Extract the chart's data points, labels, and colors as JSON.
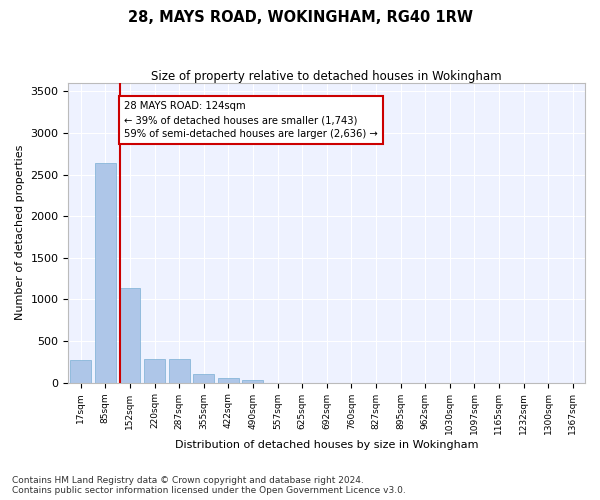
{
  "title": "28, MAYS ROAD, WOKINGHAM, RG40 1RW",
  "subtitle": "Size of property relative to detached houses in Wokingham",
  "xlabel": "Distribution of detached houses by size in Wokingham",
  "ylabel": "Number of detached properties",
  "categories": [
    "17sqm",
    "85sqm",
    "152sqm",
    "220sqm",
    "287sqm",
    "355sqm",
    "422sqm",
    "490sqm",
    "557sqm",
    "625sqm",
    "692sqm",
    "760sqm",
    "827sqm",
    "895sqm",
    "962sqm",
    "1030sqm",
    "1097sqm",
    "1165sqm",
    "1232sqm",
    "1300sqm",
    "1367sqm"
  ],
  "bar_values": [
    270,
    2640,
    1140,
    285,
    285,
    100,
    60,
    35,
    0,
    0,
    0,
    0,
    0,
    0,
    0,
    0,
    0,
    0,
    0,
    0,
    0
  ],
  "bar_color": "#aec6e8",
  "bar_edge_color": "#7bafd4",
  "vline_color": "#cc0000",
  "annotation_text": "28 MAYS ROAD: 124sqm\n← 39% of detached houses are smaller (1,743)\n59% of semi-detached houses are larger (2,636) →",
  "annotation_box_color": "#ffffff",
  "annotation_box_edge": "#cc0000",
  "ylim": [
    0,
    3600
  ],
  "yticks": [
    0,
    500,
    1000,
    1500,
    2000,
    2500,
    3000,
    3500
  ],
  "background_color": "#eef2ff",
  "grid_color": "#ffffff",
  "title_fontsize": 10.5,
  "subtitle_fontsize": 8.5,
  "footer_text": "Contains HM Land Registry data © Crown copyright and database right 2024.\nContains public sector information licensed under the Open Government Licence v3.0.",
  "footer_fontsize": 6.5
}
